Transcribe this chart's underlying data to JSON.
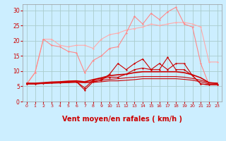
{
  "x": [
    0,
    1,
    2,
    3,
    4,
    5,
    6,
    7,
    8,
    9,
    10,
    11,
    12,
    13,
    14,
    15,
    16,
    17,
    18,
    19,
    20,
    21,
    22,
    23
  ],
  "bg_color": "#cceeff",
  "grid_color": "#aacccc",
  "xlabel": "Vent moyen/en rafales ( km/h )",
  "xlabel_color": "#cc0000",
  "xlabel_fontsize": 7,
  "tick_color": "#cc0000",
  "ylim": [
    0,
    32
  ],
  "yticks": [
    0,
    5,
    10,
    15,
    20,
    25,
    30
  ],
  "line_upper_max": {
    "y": [
      5.8,
      9.5,
      20.5,
      20.5,
      18.5,
      18.0,
      18.5,
      18.5,
      17.5,
      20.5,
      22.0,
      22.5,
      23.5,
      24.0,
      24.5,
      25.5,
      25.0,
      25.5,
      26.0,
      26.0,
      25.5,
      24.5,
      13.0,
      13.0
    ],
    "color": "#ffaaaa",
    "lw": 0.8,
    "marker": "D",
    "ms": 1.5
  },
  "line_upper_spiky": {
    "y": [
      5.8,
      9.5,
      20.5,
      18.5,
      18.0,
      16.5,
      16.0,
      9.5,
      13.5,
      15.0,
      17.5,
      18.0,
      22.5,
      28.0,
      25.5,
      29.0,
      27.0,
      29.5,
      31.0,
      25.5,
      24.5,
      12.5,
      5.5,
      5.5
    ],
    "color": "#ff8888",
    "lw": 0.8,
    "marker": "D",
    "ms": 1.5
  },
  "line_lower_spiky": {
    "y": [
      5.8,
      5.8,
      6.0,
      6.2,
      6.3,
      6.5,
      6.5,
      3.8,
      6.5,
      7.0,
      9.0,
      12.5,
      10.5,
      12.5,
      14.0,
      10.5,
      12.5,
      10.5,
      12.5,
      12.5,
      8.5,
      5.8,
      5.5,
      5.5
    ],
    "color": "#cc0000",
    "lw": 0.8,
    "marker": "D",
    "ms": 1.5
  },
  "line_lower_smooth": {
    "y": [
      5.8,
      5.8,
      6.0,
      6.2,
      6.3,
      6.5,
      6.5,
      4.5,
      7.0,
      7.5,
      8.0,
      8.0,
      9.0,
      10.5,
      11.0,
      10.5,
      10.5,
      14.5,
      10.5,
      10.5,
      8.5,
      5.8,
      5.5,
      5.5
    ],
    "color": "#cc0000",
    "lw": 0.8,
    "marker": "D",
    "ms": 1.5
  },
  "line_mean": {
    "y": [
      6.0,
      6.0,
      6.2,
      6.4,
      6.5,
      6.7,
      6.8,
      6.5,
      7.2,
      7.8,
      8.5,
      8.8,
      9.0,
      9.5,
      9.8,
      9.8,
      9.8,
      9.8,
      9.8,
      9.5,
      8.8,
      7.8,
      6.2,
      6.0
    ],
    "color": "#cc0000",
    "lw": 1.2
  },
  "line_flat1": {
    "y": [
      5.8,
      5.8,
      5.9,
      6.0,
      6.1,
      6.2,
      6.3,
      6.2,
      6.3,
      6.5,
      6.8,
      6.8,
      7.0,
      7.2,
      7.5,
      7.5,
      7.5,
      7.5,
      7.5,
      7.3,
      7.0,
      6.5,
      5.8,
      5.8
    ],
    "color": "#cc0000",
    "lw": 0.8
  },
  "line_flat2": {
    "y": [
      6.0,
      6.0,
      6.1,
      6.2,
      6.3,
      6.4,
      6.5,
      6.3,
      6.6,
      7.0,
      7.3,
      7.5,
      7.8,
      8.0,
      8.2,
      8.2,
      8.2,
      8.2,
      8.2,
      8.0,
      7.6,
      7.0,
      6.2,
      6.0
    ],
    "color": "#cc0000",
    "lw": 0.8
  },
  "arrow_symbols": [
    "↳",
    "→",
    "↳",
    "↳",
    "↘",
    "↓",
    "↳",
    "↓",
    "↓",
    "↘",
    "↘",
    "↓",
    "↘",
    "↓",
    "↓",
    "↘",
    "↓",
    "↘",
    "↓",
    "↓",
    "↓",
    "↳",
    "↳",
    "↳"
  ],
  "arrow_color": "#cc0000"
}
